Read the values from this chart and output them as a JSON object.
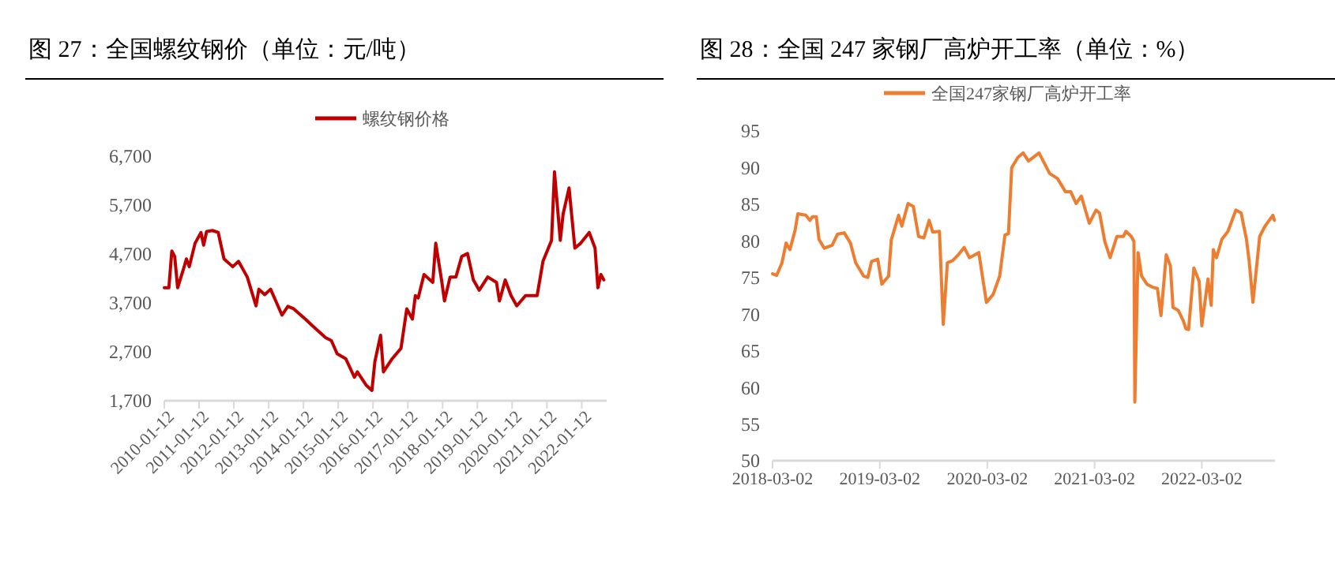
{
  "chart_data": [
    {
      "type": "line",
      "title": "图 27：全国螺纹钢价（单位：元/吨）",
      "legend": "top",
      "ylim": [
        1700,
        6700
      ],
      "yticks": [
        {
          "value": 1700,
          "label": "1,700"
        },
        {
          "value": 2700,
          "label": "2,700"
        },
        {
          "value": 3700,
          "label": "3,700"
        },
        {
          "value": 4700,
          "label": "4,700"
        },
        {
          "value": 5700,
          "label": "5,700"
        },
        {
          "value": 6700,
          "label": "6,700"
        }
      ],
      "xlim": [
        "2010-01-12",
        "2022-10-01"
      ],
      "xticks": [
        "2010-01-12",
        "2011-01-12",
        "2012-01-12",
        "2013-01-12",
        "2014-01-12",
        "2015-01-12",
        "2016-01-12",
        "2017-01-12",
        "2018-01-12",
        "2019-01-12",
        "2020-01-12",
        "2021-01-12",
        "2022-01-12"
      ],
      "series": [
        {
          "name": "螺纹钢价格",
          "color": "#c00000",
          "x": [
            "2010-01-12",
            "2010-03",
            "2010-04",
            "2010-05",
            "2010-06",
            "2010-08",
            "2010-09",
            "2010-10",
            "2010-12",
            "2011-02",
            "2011-03",
            "2011-04",
            "2011-06",
            "2011-08",
            "2011-10",
            "2012-01",
            "2012-03",
            "2012-06",
            "2012-09",
            "2012-10",
            "2012-12",
            "2013-02",
            "2013-04",
            "2013-06",
            "2013-08",
            "2013-10",
            "2014-02",
            "2014-04",
            "2014-07",
            "2014-09",
            "2014-11",
            "2015-01",
            "2015-04",
            "2015-07",
            "2015-08",
            "2015-11",
            "2016-01",
            "2016-02",
            "2016-04",
            "2016-05",
            "2016-08",
            "2016-11",
            "2017-01",
            "2017-03",
            "2017-04",
            "2017-05",
            "2017-07",
            "2017-10",
            "2017-11",
            "2018-01",
            "2018-02",
            "2018-04",
            "2018-06",
            "2018-08",
            "2018-10",
            "2018-12",
            "2019-02",
            "2019-05",
            "2019-08",
            "2019-09",
            "2019-11",
            "2020-01",
            "2020-03",
            "2020-06",
            "2020-10",
            "2020-12",
            "2021-03",
            "2021-04",
            "2021-06",
            "2021-07",
            "2021-09",
            "2021-11",
            "2022-01",
            "2022-04",
            "2022-06",
            "2022-07",
            "2022-08",
            "2022-09"
          ],
          "values": [
            4010,
            4010,
            4760,
            4650,
            4010,
            4390,
            4600,
            4440,
            4920,
            5140,
            4880,
            5160,
            5180,
            5140,
            4600,
            4440,
            4550,
            4230,
            3640,
            3980,
            3870,
            3980,
            3720,
            3450,
            3630,
            3580,
            3370,
            3260,
            3100,
            2990,
            2930,
            2660,
            2560,
            2180,
            2290,
            2020,
            1910,
            2500,
            3040,
            2290,
            2560,
            2770,
            3580,
            3370,
            3850,
            3800,
            4280,
            4120,
            4920,
            4170,
            3740,
            4230,
            4230,
            4650,
            4710,
            4170,
            3960,
            4230,
            4120,
            3740,
            4170,
            3850,
            3640,
            3850,
            3850,
            4550,
            4980,
            6380,
            4980,
            5520,
            6050,
            4820,
            4920,
            5140,
            4820,
            4010,
            4280,
            4170
          ]
        }
      ]
    },
    {
      "type": "line",
      "title": "图 28：全国 247 家钢厂高炉开工率（单位：%）",
      "legend": "top",
      "ylim": [
        50,
        95
      ],
      "yticks": [
        50,
        55,
        60,
        65,
        70,
        75,
        80,
        85,
        90,
        95
      ],
      "xlim": [
        "2018-03-02",
        "2022-11-06"
      ],
      "xticks": [
        "2018-03-02",
        "2019-03-02",
        "2020-03-02",
        "2021-03-02",
        "2022-03-02"
      ],
      "series": [
        {
          "name": "全国247家钢厂高炉开工率",
          "color": "#ed7d31",
          "x": [
            "2018-03-02",
            "2018-03-16",
            "2018-04-03",
            "2018-04-17",
            "2018-04-30",
            "2018-05-18",
            "2018-05-27",
            "2018-06-23",
            "2018-07-07",
            "2018-07-16",
            "2018-07-29",
            "2018-08-07",
            "2018-08-25",
            "2018-09-21",
            "2018-10-09",
            "2018-11-01",
            "2018-11-22",
            "2018-12-10",
            "2019-01-06",
            "2019-01-20",
            "2019-02-02",
            "2019-02-23",
            "2019-03-09",
            "2019-04-01",
            "2019-04-10",
            "2019-05-05",
            "2019-05-16",
            "2019-06-06",
            "2019-06-24",
            "2019-07-12",
            "2019-07-30",
            "2019-08-17",
            "2019-08-29",
            "2019-09-21",
            "2019-10-04",
            "2019-10-18",
            "2019-11-05",
            "2019-11-22",
            "2019-12-14",
            "2020-01-01",
            "2020-02-02",
            "2020-02-28",
            "2020-03-22",
            "2020-04-13",
            "2020-05-01",
            "2020-05-13",
            "2020-05-24",
            "2020-06-14",
            "2020-07-02",
            "2020-07-20",
            "2020-08-25",
            "2020-09-30",
            "2020-10-27",
            "2020-11-23",
            "2020-12-11",
            "2020-12-29",
            "2021-01-16",
            "2021-02-12",
            "2021-03-07",
            "2021-03-19",
            "2021-04-06",
            "2021-04-24",
            "2021-05-17",
            "2021-06-08",
            "2021-06-17",
            "2021-07-05",
            "2021-07-14",
            "2021-07-17",
            "2021-07-28",
            "2021-08-09",
            "2021-08-27",
            "2021-09-14",
            "2021-10-02",
            "2021-10-14",
            "2021-11-01",
            "2021-11-15",
            "2021-11-24",
            "2021-12-12",
            "2021-12-29",
            "2022-01-07",
            "2022-01-16",
            "2022-02-03",
            "2022-02-21",
            "2022-03-02",
            "2022-03-23",
            "2022-04-03",
            "2022-04-10",
            "2022-04-21",
            "2022-05-09",
            "2022-05-30",
            "2022-06-26",
            "2022-07-14",
            "2022-08-01",
            "2022-08-10",
            "2022-08-23",
            "2022-09-15",
            "2022-10-03",
            "2022-10-30",
            "2022-11-04"
          ],
          "values": [
            75.5,
            75.3,
            77,
            79.7,
            78.8,
            81.5,
            83.7,
            83.5,
            82.8,
            83.3,
            83.3,
            80.2,
            79,
            79.4,
            80.9,
            81.1,
            79.7,
            77,
            75.2,
            75,
            77.2,
            77.5,
            74.1,
            75.2,
            80.1,
            83.5,
            82,
            85.1,
            84.7,
            80.6,
            80.4,
            82.8,
            81.2,
            81.3,
            68.6,
            77,
            77.3,
            78,
            79.1,
            77.7,
            78.4,
            71.6,
            72.7,
            75.2,
            80.8,
            81,
            90,
            91.4,
            92,
            90.9,
            92,
            89.2,
            88.5,
            86.7,
            86.7,
            85.1,
            86.1,
            82.4,
            84.2,
            83.8,
            79.9,
            77.7,
            80.6,
            80.6,
            81.3,
            80.6,
            79.9,
            58,
            78.4,
            75.2,
            74.1,
            73.7,
            73.5,
            69.8,
            78.1,
            76.6,
            70.9,
            70.5,
            69.1,
            68,
            67.9,
            76.3,
            74.5,
            68.4,
            74.8,
            71.2,
            78.8,
            77.7,
            80.2,
            81.3,
            84.2,
            83.8,
            80.2,
            77.3,
            71.6,
            80.6,
            82,
            83.5,
            82.8
          ]
        }
      ]
    }
  ]
}
